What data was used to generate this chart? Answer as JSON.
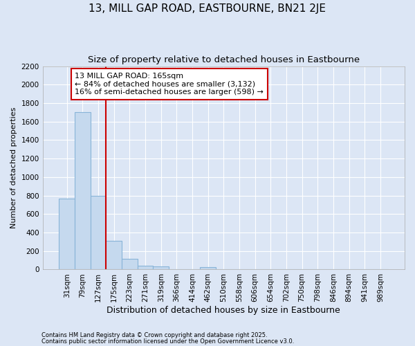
{
  "title": "13, MILL GAP ROAD, EASTBOURNE, BN21 2JE",
  "subtitle": "Size of property relative to detached houses in Eastbourne",
  "xlabel": "Distribution of detached houses by size in Eastbourne",
  "ylabel": "Number of detached properties",
  "footnote1": "Contains HM Land Registry data © Crown copyright and database right 2025.",
  "footnote2": "Contains public sector information licensed under the Open Government Licence v3.0.",
  "annotation_line1": "13 MILL GAP ROAD: 165sqm",
  "annotation_line2": "← 84% of detached houses are smaller (3,132)",
  "annotation_line3": "16% of semi-detached houses are larger (598) →",
  "bar_color": "#c5d9ee",
  "bar_edge_color": "#88b4d8",
  "vline_color": "#cc0000",
  "vline_x": 3,
  "ylim": [
    0,
    2200
  ],
  "yticks": [
    0,
    200,
    400,
    600,
    800,
    1000,
    1200,
    1400,
    1600,
    1800,
    2000,
    2200
  ],
  "categories": [
    "31sqm",
    "79sqm",
    "127sqm",
    "175sqm",
    "223sqm",
    "271sqm",
    "319sqm",
    "366sqm",
    "414sqm",
    "462sqm",
    "510sqm",
    "558sqm",
    "606sqm",
    "654sqm",
    "702sqm",
    "750sqm",
    "798sqm",
    "846sqm",
    "894sqm",
    "941sqm",
    "989sqm"
  ],
  "values": [
    770,
    1700,
    800,
    310,
    115,
    40,
    30,
    0,
    0,
    25,
    0,
    0,
    0,
    0,
    0,
    0,
    0,
    0,
    0,
    0,
    0
  ],
  "background_color": "#dce6f5",
  "plot_background": "#dce6f5",
  "grid_color": "#ffffff",
  "title_fontsize": 11,
  "subtitle_fontsize": 9.5,
  "xlabel_fontsize": 9,
  "ylabel_fontsize": 8,
  "tick_fontsize": 7.5,
  "annot_fontsize": 8,
  "footnote_fontsize": 6
}
